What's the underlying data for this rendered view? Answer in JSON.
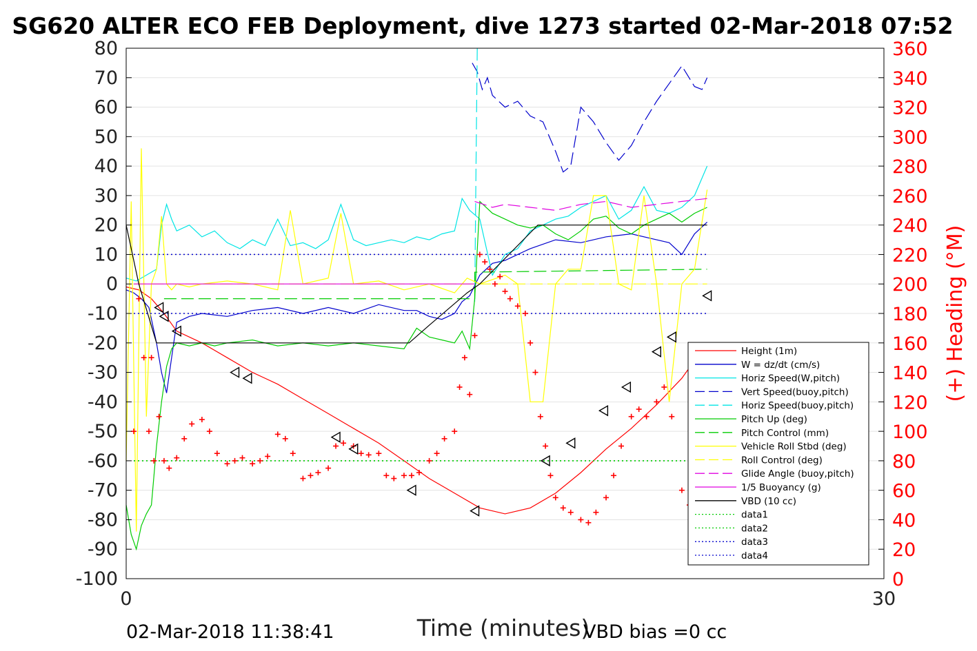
{
  "title": "SG620 ALTER ECO FEB Deployment, dive 1273 started 02-Mar-2018 07:52",
  "footer": {
    "timestamp": "02-Mar-2018 11:38:41",
    "vbd_bias": "VBD bias =0 cc"
  },
  "colors": {
    "height": "#ff0000",
    "w": "#0000cc",
    "horiz_speed": "#00e5e5",
    "vert_speed_buoy": "#0000cc",
    "horiz_speed_buoy": "#00e5e5",
    "pitch_up": "#00cc00",
    "pitch_control": "#00cc00",
    "roll": "#ffff00",
    "roll_control": "#ffff00",
    "glide_angle": "#e000e0",
    "buoyancy": "#e000e0",
    "vbd": "#000000",
    "heading": "#ff0000",
    "axis_right": "#ff0000"
  },
  "chart_data": {
    "type": "line",
    "title": "SG620 ALTER ECO FEB Deployment, dive 1273 started 02-Mar-2018 07:52",
    "xlabel": "Time (minutes)",
    "ylabel_right": "(+) Heading (°M)",
    "xlim": [
      0,
      30
    ],
    "ylim": [
      -100,
      80
    ],
    "ylim_right": [
      0,
      360
    ],
    "x_ticks": [
      "0",
      "30"
    ],
    "y_ticks": [
      "80",
      "70",
      "60",
      "50",
      "40",
      "30",
      "20",
      "10",
      "0",
      "-10",
      "-20",
      "-30",
      "-40",
      "-50",
      "-60",
      "-70",
      "-80",
      "-90",
      "-100"
    ],
    "y_ticks_right": [
      "360",
      "340",
      "320",
      "300",
      "280",
      "260",
      "240",
      "220",
      "200",
      "180",
      "160",
      "140",
      "120",
      "100",
      "80",
      "60",
      "40",
      "20",
      "0"
    ],
    "grid": true,
    "legend_position": "lower-right",
    "legend": [
      {
        "label": "Height (1m)",
        "color": "#ff0000",
        "dash": "solid"
      },
      {
        "label": "W = dz/dt (cm/s)",
        "color": "#0000cc",
        "dash": "solid"
      },
      {
        "label": "Horiz Speed(W,pitch)",
        "color": "#00e5e5",
        "dash": "solid"
      },
      {
        "label": "Vert Speed(buoy,pitch)",
        "color": "#0000cc",
        "dash": "dashed"
      },
      {
        "label": "Horiz Speed(buoy,pitch)",
        "color": "#00e5e5",
        "dash": "dashed"
      },
      {
        "label": "Pitch Up (deg)",
        "color": "#00cc00",
        "dash": "solid"
      },
      {
        "label": "Pitch Control (mm)",
        "color": "#00cc00",
        "dash": "dashed"
      },
      {
        "label": "Vehicle Roll Stbd (deg)",
        "color": "#ffff00",
        "dash": "solid"
      },
      {
        "label": "Roll Control (deg)",
        "color": "#ffff00",
        "dash": "dashed"
      },
      {
        "label": "Glide Angle (buoy,pitch)",
        "color": "#e000e0",
        "dash": "dashed"
      },
      {
        "label": "1/5 Buoyancy (g)",
        "color": "#e000e0",
        "dash": "solid"
      },
      {
        "label": "VBD (10 cc)",
        "color": "#000000",
        "dash": "solid"
      },
      {
        "label": "data1",
        "color": "#00cc00",
        "dash": "dotted"
      },
      {
        "label": "data2",
        "color": "#00cc00",
        "dash": "dotted"
      },
      {
        "label": "data3",
        "color": "#0000cc",
        "dash": "dotted"
      },
      {
        "label": "data4",
        "color": "#0000cc",
        "dash": "dotted"
      }
    ],
    "series": [
      {
        "name": "Height (1m)",
        "axis": "left",
        "x": [
          0.0,
          0.5,
          1.0,
          1.5,
          2.0,
          3.0,
          4.0,
          5.0,
          6.0,
          7.0,
          8.0,
          9.0,
          10.0,
          11.0,
          12.0,
          13.0,
          14.0,
          15.0,
          16.0,
          17.0,
          18.0,
          19.0,
          20.0,
          21.0,
          22.0,
          23.0
        ],
        "y": [
          -1,
          -2,
          -5,
          -10,
          -16,
          -20,
          -25,
          -30,
          -34,
          -39,
          -44,
          -49,
          -54,
          -60,
          -66,
          -71,
          -76,
          -78,
          -76,
          -71,
          -64,
          -56,
          -49,
          -41,
          -32,
          -20
        ]
      },
      {
        "name": "W = dz/dt (cm/s)",
        "axis": "left",
        "x": [
          0.0,
          0.3,
          0.6,
          0.9,
          1.2,
          1.4,
          1.6,
          1.8,
          2.0,
          2.5,
          3.0,
          4.0,
          5.0,
          6.0,
          7.0,
          8.0,
          9.0,
          10.0,
          11.0,
          11.5,
          12.0,
          12.5,
          13.0,
          13.3,
          13.6,
          14.0,
          14.5,
          15.0,
          15.5,
          16.0,
          17.0,
          18.0,
          19.0,
          20.0,
          21.0,
          21.5,
          22.0,
          22.5,
          23.0
        ],
        "y": [
          -2,
          -3,
          -5,
          -8,
          -20,
          -30,
          -37,
          -25,
          -13,
          -11,
          -10,
          -11,
          -9,
          -8,
          -10,
          -8,
          -10,
          -7,
          -9,
          -9,
          -11,
          -12,
          -10,
          -6,
          -4,
          3,
          7,
          8,
          10,
          12,
          15,
          14,
          16,
          17,
          15,
          14,
          10,
          17,
          21
        ]
      },
      {
        "name": "Horiz Speed(W,pitch)",
        "axis": "left",
        "x": [
          0.0,
          0.4,
          0.8,
          1.2,
          1.4,
          1.6,
          1.8,
          2.0,
          2.5,
          3.0,
          3.5,
          4.0,
          4.5,
          5.0,
          5.5,
          6.0,
          6.5,
          7.0,
          7.5,
          8.0,
          8.5,
          9.0,
          9.5,
          10.0,
          10.5,
          11.0,
          11.5,
          12.0,
          12.5,
          13.0,
          13.3,
          13.6,
          14.0,
          14.5,
          15.0,
          15.5,
          16.0,
          16.5,
          17.0,
          17.5,
          18.0,
          18.5,
          19.0,
          19.5,
          20.0,
          20.5,
          21.0,
          21.5,
          22.0,
          22.5,
          23.0
        ],
        "y": [
          2,
          1,
          3,
          5,
          20,
          27,
          22,
          18,
          20,
          16,
          18,
          14,
          12,
          15,
          13,
          22,
          13,
          14,
          12,
          15,
          27,
          15,
          13,
          14,
          15,
          14,
          16,
          15,
          17,
          18,
          29,
          25,
          22,
          3,
          10,
          12,
          18,
          20,
          22,
          23,
          26,
          28,
          30,
          22,
          25,
          33,
          25,
          24,
          26,
          30,
          40
        ]
      },
      {
        "name": "Vert Speed(buoy,pitch)",
        "axis": "left",
        "x": [
          13.7,
          13.9,
          14.1,
          14.3,
          14.5,
          15.0,
          15.5,
          16.0,
          16.5,
          17.0,
          17.3,
          17.6,
          18.0,
          18.5,
          19.0,
          19.5,
          20.0,
          20.5,
          21.0,
          21.5,
          22.0,
          22.5,
          22.8,
          23.0
        ],
        "y": [
          75,
          72,
          66,
          70,
          64,
          60,
          62,
          57,
          55,
          45,
          38,
          40,
          60,
          55,
          48,
          42,
          47,
          55,
          62,
          68,
          74,
          67,
          66,
          70
        ]
      },
      {
        "name": "Horiz Speed(buoy,pitch)",
        "axis": "left",
        "x": [
          13.8,
          13.85,
          13.9
        ],
        "y": [
          -6,
          40,
          80
        ]
      },
      {
        "name": "Pitch Up (deg)",
        "axis": "left",
        "x": [
          0.0,
          0.2,
          0.4,
          0.6,
          0.8,
          1.0,
          1.2,
          1.4,
          1.6,
          1.8,
          2.0,
          2.5,
          3.0,
          3.5,
          4.0,
          5.0,
          6.0,
          7.0,
          8.0,
          9.0,
          10.0,
          11.0,
          11.5,
          12.0,
          12.5,
          13.0,
          13.3,
          13.6,
          13.8,
          14.0,
          14.5,
          15.0,
          15.5,
          16.0,
          16.5,
          17.0,
          17.5,
          18.0,
          18.5,
          19.0,
          19.5,
          20.0,
          20.5,
          21.0,
          21.5,
          22.0,
          22.5,
          23.0
        ],
        "y": [
          -75,
          -85,
          -90,
          -82,
          -78,
          -75,
          -55,
          -40,
          -28,
          -22,
          -20,
          -21,
          -20,
          -21,
          -20,
          -19,
          -21,
          -20,
          -21,
          -20,
          -21,
          -22,
          -15,
          -18,
          -19,
          -20,
          -16,
          -22,
          -5,
          28,
          24,
          22,
          20,
          19,
          20,
          17,
          15,
          18,
          22,
          23,
          19,
          17,
          20,
          22,
          24,
          21,
          24,
          26
        ]
      },
      {
        "name": "Pitch Control (mm)",
        "axis": "left",
        "x": [
          1.5,
          13.8,
          13.8,
          23.0
        ],
        "y": [
          -5,
          -5,
          4,
          5
        ]
      },
      {
        "name": "Vehicle Roll Stbd (deg)",
        "axis": "left",
        "x": [
          0.0,
          0.2,
          0.4,
          0.6,
          0.8,
          1.0,
          1.2,
          1.4,
          1.6,
          1.8,
          2.0,
          2.5,
          3.0,
          4.0,
          5.0,
          6.0,
          6.5,
          7.0,
          8.0,
          8.5,
          9.0,
          10.0,
          11.0,
          12.0,
          13.0,
          13.5,
          14.0,
          15.0,
          15.5,
          16.0,
          16.5,
          17.0,
          17.5,
          18.0,
          18.5,
          19.0,
          19.5,
          20.0,
          20.5,
          21.0,
          21.5,
          22.0,
          22.5,
          23.0
        ],
        "y": [
          -60,
          28,
          -84,
          46,
          -45,
          0,
          5,
          23,
          0,
          -2,
          0,
          -1,
          0,
          1,
          0,
          -2,
          25,
          0,
          2,
          24,
          0,
          1,
          -2,
          0,
          -3,
          2,
          0,
          3,
          0,
          -40,
          -40,
          0,
          5,
          5,
          30,
          30,
          0,
          -2,
          30,
          0,
          -40,
          0,
          5,
          32
        ]
      },
      {
        "name": "Roll Control (deg)",
        "axis": "left",
        "x": [
          0.3,
          23.0
        ],
        "y": [
          0,
          0
        ]
      },
      {
        "name": "Glide Angle (buoy,pitch)",
        "axis": "left",
        "x": [
          13.8,
          14.5,
          15.0,
          16.0,
          17.0,
          18.0,
          19.0,
          20.0,
          21.0,
          22.0,
          23.0
        ],
        "y": [
          28,
          26,
          27,
          26,
          25,
          27,
          28,
          26,
          27,
          28,
          29
        ]
      },
      {
        "name": "1/5 Buoyancy (g)",
        "axis": "left",
        "x": [
          0.3,
          13.8
        ],
        "y": [
          0,
          0
        ]
      },
      {
        "name": "VBD (10 cc)",
        "axis": "left",
        "x": [
          0.0,
          0.5,
          1.2,
          11.2,
          12.0,
          13.5,
          14.0,
          16.3,
          23.0
        ],
        "y": [
          20,
          0,
          -20,
          -20,
          -14,
          -3,
          0,
          20,
          20
        ]
      },
      {
        "name": "data1",
        "axis": "left",
        "x": [
          0.3,
          23.0
        ],
        "y": [
          -60,
          -60
        ]
      },
      {
        "name": "data2",
        "axis": "left",
        "x": [
          0.3,
          23.0
        ],
        "y": [
          -60,
          -60
        ]
      },
      {
        "name": "data3",
        "axis": "left",
        "x": [
          0.3,
          23.0
        ],
        "y": [
          10,
          10
        ]
      },
      {
        "name": "data4",
        "axis": "left",
        "x": [
          0.3,
          23.0
        ],
        "y": [
          -10,
          -10
        ]
      },
      {
        "name": "Heading",
        "axis": "right",
        "style": "markers",
        "x": [
          0.3,
          0.5,
          0.7,
          0.9,
          1.0,
          1.1,
          1.3,
          1.5,
          1.7,
          2.0,
          2.3,
          2.6,
          3.0,
          3.3,
          3.6,
          4.0,
          4.3,
          4.6,
          5.0,
          5.3,
          5.6,
          6.0,
          6.3,
          6.6,
          7.0,
          7.3,
          7.6,
          8.0,
          8.3,
          8.6,
          9.0,
          9.3,
          9.6,
          10.0,
          10.3,
          10.6,
          11.0,
          11.3,
          11.6,
          12.0,
          12.3,
          12.6,
          13.0,
          13.2,
          13.4,
          13.6,
          13.8,
          14.0,
          14.2,
          14.4,
          14.6,
          14.8,
          15.0,
          15.2,
          15.5,
          15.8,
          16.0,
          16.2,
          16.4,
          16.6,
          16.8,
          17.0,
          17.3,
          17.6,
          18.0,
          18.3,
          18.6,
          19.0,
          19.3,
          19.6,
          20.0,
          20.3,
          20.6,
          21.0,
          21.3,
          21.6,
          22.0,
          22.3,
          22.6
        ],
        "y": [
          100,
          190,
          150,
          100,
          150,
          80,
          110,
          80,
          75,
          82,
          95,
          105,
          108,
          100,
          85,
          78,
          80,
          82,
          78,
          80,
          83,
          98,
          95,
          85,
          68,
          70,
          72,
          75,
          90,
          92,
          90,
          85,
          84,
          85,
          70,
          68,
          70,
          70,
          72,
          80,
          85,
          95,
          100,
          130,
          150,
          125,
          165,
          220,
          215,
          210,
          200,
          205,
          195,
          190,
          185,
          180,
          160,
          140,
          110,
          90,
          70,
          55,
          48,
          45,
          40,
          38,
          45,
          55,
          70,
          90,
          110,
          115,
          110,
          120,
          130,
          110,
          60,
          50,
          45
        ]
      }
    ],
    "markers_left_triangle": {
      "x": [
        1.3,
        1.5,
        2.0,
        4.3,
        4.8,
        8.3,
        9.0,
        11.3,
        13.8,
        16.6,
        17.6,
        18.9,
        19.8,
        21.0,
        21.6,
        23.0
      ],
      "y": [
        -8,
        -11,
        -16,
        -30,
        -32,
        -52,
        -56,
        -70,
        -77,
        -60,
        -54,
        -43,
        -35,
        -23,
        -18,
        -4
      ]
    }
  }
}
